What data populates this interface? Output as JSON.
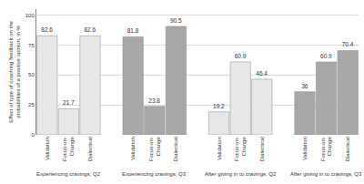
{
  "chart_data": {
    "type": "bar",
    "ylabel": "Effect of type of coaching feedback on the probabilities of a positive opinion, in %",
    "categories": [
      [
        "Experiencing cravings, Q2",
        "Validation"
      ],
      [
        "Experiencing cravings, Q2",
        "Focus-on-\nChange"
      ],
      [
        "Experiencing cravings, Q2",
        "Dialectical"
      ],
      [
        "Experiencing cravings, Q3",
        "Validation"
      ],
      [
        "Experiencing cravings, Q3",
        "Focus-on-\nChange"
      ],
      [
        "Experiencing cravings, Q3",
        "Dialectical"
      ],
      [
        "After giving in to cravings, Q2",
        "Validation"
      ],
      [
        "After giving in to cravings, Q2",
        "Focus-on-\nChange"
      ],
      [
        "After giving in to cravings, Q2",
        "Dialectical"
      ],
      [
        "After giving in to cravings, Q3",
        "Validation"
      ],
      [
        "After giving in to cravings, Q3",
        "Focus-on-\nChange"
      ],
      [
        "After giving in to cravings, Q3",
        "Dialectical"
      ]
    ],
    "values": [
      82.6,
      21.7,
      82.6,
      81.8,
      23.8,
      90.5,
      19.2,
      60.9,
      46.4,
      36,
      60.9,
      70.4
    ],
    "colors": [
      "#e8e8e8",
      "#e8e8e8",
      "#e8e8e8",
      "#a8a8a8",
      "#a8a8a8",
      "#a8a8a8",
      "#e8e8e8",
      "#e8e8e8",
      "#e8e8e8",
      "#a8a8a8",
      "#a8a8a8",
      "#a8a8a8"
    ],
    "ylim": [
      0,
      105
    ],
    "yticks": [
      0,
      25,
      50,
      75,
      100
    ],
    "grid": true,
    "data_labels": true
  }
}
